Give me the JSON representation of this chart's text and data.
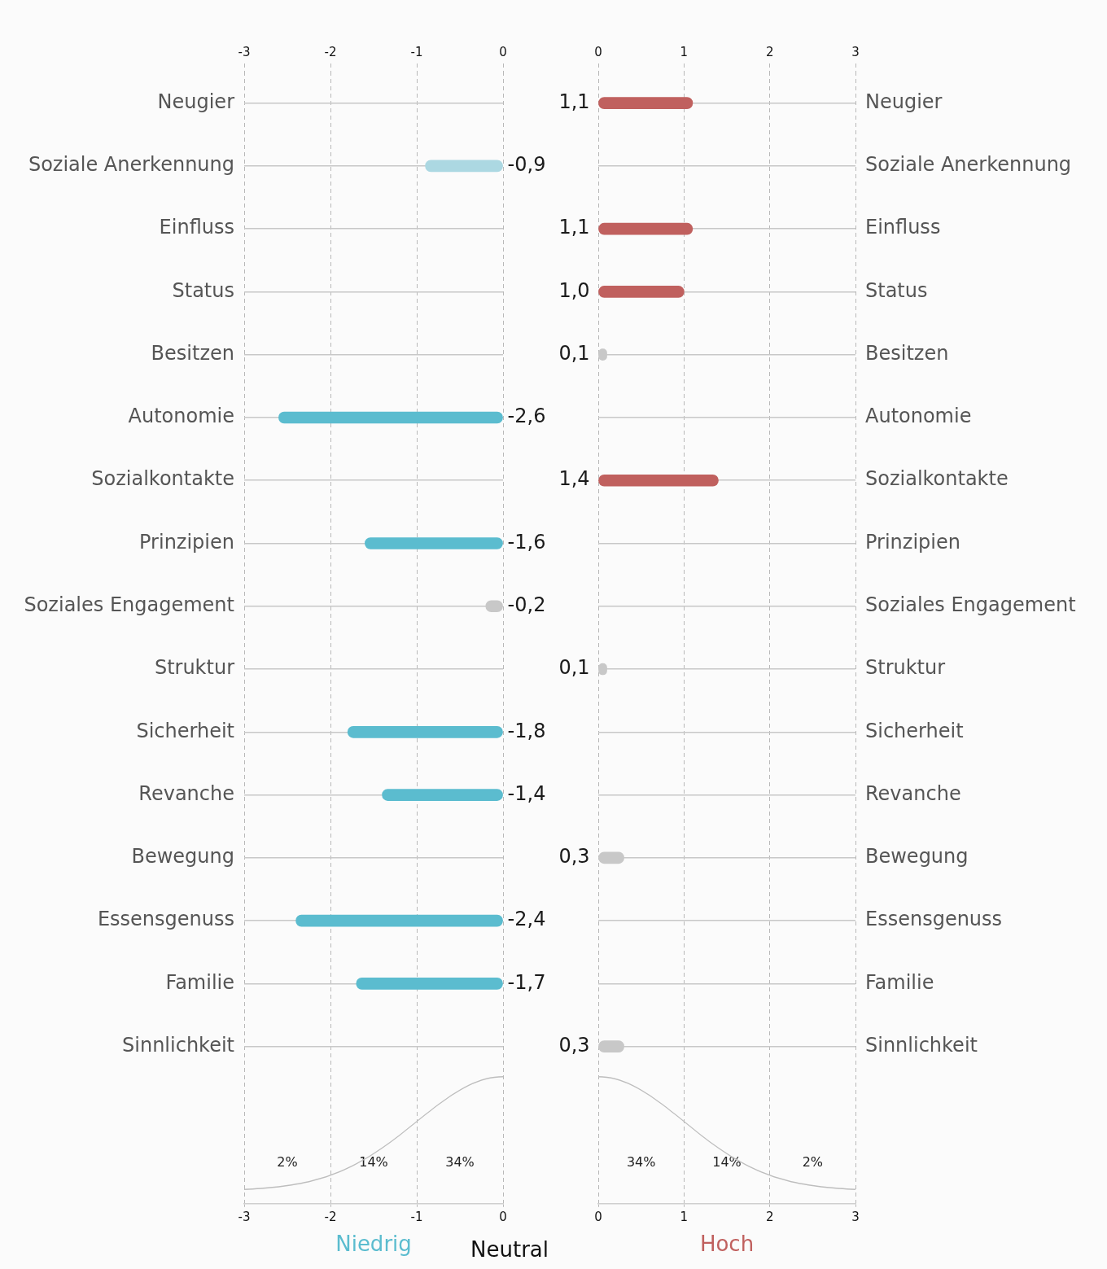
{
  "chart_data": [
    {
      "type": "bar",
      "orientation": "horizontal",
      "grid": true,
      "legend": false,
      "categories": [
        "Neugier",
        "Soziale Anerkennung",
        "Einfluss",
        "Status",
        "Besitzen",
        "Autonomie",
        "Sozialkontakte",
        "Prinzipien",
        "Soziales Engagement",
        "Struktur",
        "Sicherheit",
        "Revanche",
        "Bewegung",
        "Essensgenuss",
        "Familie",
        "Sinnlichkeit",
        null,
        null
      ],
      "values": [
        null,
        -0.9,
        null,
        null,
        null,
        -2.6,
        null,
        -1.6,
        -0.2,
        null,
        -1.8,
        -1.4,
        null,
        -2.4,
        -1.7,
        null,
        null,
        null
      ],
      "colors": [
        null,
        "#acd8e2",
        null,
        null,
        null,
        "#5bbccf",
        null,
        "#5bbccf",
        "#c8c8c8",
        null,
        "#5bbccf",
        "#5bbccf",
        null,
        "#5bbccf",
        "#5bbccf",
        null,
        null,
        null
      ],
      "value_labels": [
        null,
        "-0,9",
        null,
        null,
        null,
        "-2,6",
        null,
        "-1,6",
        "-0,2",
        null,
        "-1,8",
        "-1,4",
        null,
        "-2,4",
        "-1,7",
        null,
        null,
        null
      ],
      "xlim": [
        -3,
        0
      ],
      "xticks": [
        -3,
        -2,
        -1,
        0
      ],
      "x2lim": [
        -3,
        0
      ],
      "x2ticks": [
        -3,
        -2,
        -1,
        0
      ],
      "xlabel": "Niedrig",
      "annotations": [
        "2%",
        "14%",
        "34%",
        "Neutral"
      ]
    },
    {
      "type": "bar",
      "orientation": "horizontal",
      "grid": true,
      "legend": false,
      "categories": [
        "Neugier",
        "Soziale Anerkennung",
        "Einfluss",
        "Status",
        "Besitzen",
        "Autonomie",
        "Sozialkontakte",
        "Prinzipien",
        "Soziales Engagement",
        "Struktur",
        "Sicherheit",
        "Revanche",
        "Bewegung",
        "Essensgenuss",
        "Familie",
        "Sinnlichkeit",
        null,
        null
      ],
      "values": [
        1.1,
        null,
        1.1,
        1.0,
        0.1,
        null,
        1.4,
        null,
        null,
        0.1,
        null,
        null,
        0.3,
        null,
        null,
        0.3,
        null,
        null
      ],
      "colors": [
        "#c0605e",
        null,
        "#c0605e",
        "#c0605e",
        "#c8c8c8",
        null,
        "#c0605e",
        null,
        null,
        "#c8c8c8",
        null,
        null,
        "#c8c8c8",
        null,
        null,
        "#c8c8c8",
        null,
        null
      ],
      "value_labels": [
        "1,1",
        null,
        "1,1",
        "1,0",
        "0,1",
        null,
        "1,4",
        null,
        null,
        "0,1",
        null,
        null,
        "0,3",
        null,
        null,
        "0,3",
        null,
        null
      ],
      "xlim": [
        0,
        3
      ],
      "xticks": [
        0,
        1,
        2,
        3
      ],
      "x2lim": [
        0,
        3
      ],
      "x2ticks": [
        0,
        1,
        2,
        3
      ],
      "xlabel": "Hoch",
      "annotations": [
        "34%",
        "14%",
        "2%"
      ]
    }
  ]
}
